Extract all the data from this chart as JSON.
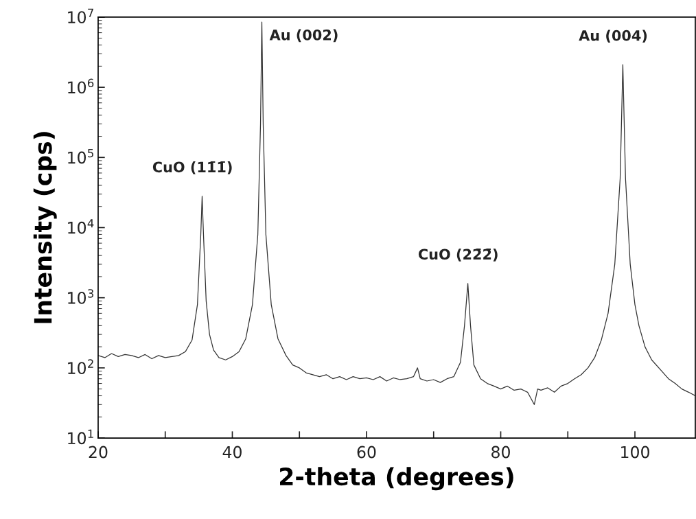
{
  "chart_data": {
    "type": "line",
    "xlabel": "2-theta (degrees)",
    "ylabel": "Intensity (cps)",
    "log": "y",
    "color": "#333333",
    "marker": "none",
    "line_style": "solid",
    "grid": false,
    "legend": false,
    "xlim": [
      20,
      109
    ],
    "ylim": [
      10,
      10000000
    ],
    "xticks": [
      20,
      {
        "value": 30,
        "label": null
      },
      40,
      {
        "value": 50,
        "label": null
      },
      60,
      {
        "value": 70,
        "label": null
      },
      80,
      {
        "value": 90,
        "label": null
      },
      100
    ],
    "yticks": [
      {
        "value": 10,
        "label": "10$^{1}$"
      },
      {
        "value": 100,
        "label": "10$^{2}$"
      },
      {
        "value": 1000,
        "label": "10$^{3}$"
      },
      {
        "value": 10000,
        "label": "10$^{4}$"
      },
      {
        "value": 100000,
        "label": "10$^{5}$"
      },
      {
        "value": 1000000,
        "label": "10$^{6}$"
      },
      {
        "value": 10000000,
        "label": "10$^{7}$"
      }
    ],
    "x": [
      20,
      21,
      22,
      23,
      24,
      25,
      26,
      27,
      28,
      29,
      30,
      31,
      32,
      33,
      34,
      34.8,
      35.3,
      35.5,
      35.7,
      36.1,
      36.6,
      37.2,
      38,
      39,
      40,
      41,
      42,
      43,
      43.8,
      44.2,
      44.4,
      44.6,
      45,
      45.8,
      46.8,
      48,
      49,
      50,
      51,
      52,
      53,
      54,
      55,
      56,
      57,
      58,
      59,
      60,
      61,
      62,
      63,
      64,
      65,
      66,
      67,
      67.6,
      68,
      69,
      70,
      71,
      72,
      73,
      74,
      74.6,
      75.1,
      75.5,
      76,
      77,
      78,
      79,
      80,
      81,
      82,
      83,
      84,
      85,
      85.5,
      86,
      87,
      88,
      89,
      90,
      91,
      92,
      93,
      94,
      95,
      96,
      97,
      97.8,
      98.2,
      98.6,
      99.3,
      100,
      100.6,
      101.5,
      102.5,
      104,
      105,
      106,
      107,
      108,
      109
    ],
    "values": [
      150,
      140,
      160,
      145,
      155,
      150,
      140,
      155,
      135,
      150,
      140,
      145,
      150,
      170,
      250,
      800,
      8000,
      28000,
      8000,
      900,
      300,
      180,
      140,
      130,
      145,
      170,
      260,
      800,
      8000,
      300000,
      8500000,
      300000,
      8000,
      800,
      260,
      150,
      110,
      100,
      85,
      80,
      75,
      80,
      70,
      75,
      68,
      75,
      70,
      72,
      68,
      75,
      65,
      72,
      68,
      70,
      75,
      100,
      70,
      65,
      68,
      62,
      70,
      75,
      120,
      400,
      1600,
      400,
      110,
      70,
      60,
      55,
      50,
      55,
      48,
      50,
      45,
      30,
      50,
      48,
      52,
      45,
      55,
      60,
      70,
      80,
      100,
      140,
      250,
      600,
      3000,
      50000,
      2100000,
      50000,
      3000,
      800,
      400,
      200,
      130,
      90,
      70,
      60,
      50,
      45,
      40
    ],
    "annotations": [
      {
        "text": "CuO (11̄1̄)",
        "x": 35.5,
        "y": 28000
      },
      {
        "text": "Au (002)",
        "x": 44.4,
        "y": 8500000
      },
      {
        "text": "CuO (22̄2̄)",
        "x": 75.1,
        "y": 1600
      },
      {
        "text": "Au (004)",
        "x": 98.2,
        "y": 2100000
      }
    ]
  }
}
